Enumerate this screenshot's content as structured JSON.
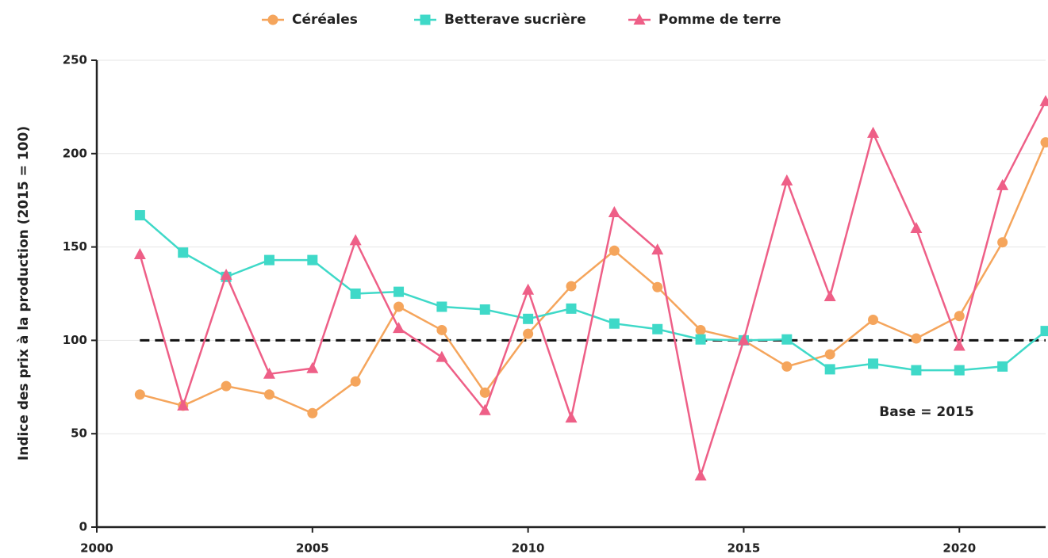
{
  "chart_data": {
    "type": "line",
    "y_label": "Indice des prix à la production (2015 = 100)",
    "x": [
      2001,
      2002,
      2003,
      2004,
      2005,
      2006,
      2007,
      2008,
      2009,
      2010,
      2011,
      2012,
      2013,
      2014,
      2015,
      2016,
      2017,
      2018,
      2019,
      2020,
      2021,
      2022
    ],
    "series": [
      {
        "name": "Céréales",
        "color": "#f5a55c",
        "marker": "circle",
        "values": [
          71,
          65,
          75.5,
          71,
          61,
          78,
          118,
          105.5,
          72,
          103.5,
          129,
          148,
          128.5,
          105.5,
          100,
          86,
          92.5,
          111,
          101,
          113,
          152.5,
          206
        ]
      },
      {
        "name": "Betterave sucrière",
        "color": "#3fd9c8",
        "marker": "square",
        "values": [
          167,
          147,
          134,
          143,
          143,
          125,
          126,
          118,
          116.5,
          111.5,
          117,
          109,
          106,
          100.5,
          100,
          100.5,
          84.5,
          87.5,
          84,
          84,
          86,
          105
        ]
      },
      {
        "name": "Pomme de terre",
        "color": "#ee5f87",
        "marker": "triangle",
        "values": [
          146,
          65,
          135,
          82,
          85,
          153.5,
          106.5,
          91,
          62.5,
          127,
          58.5,
          168.5,
          148.5,
          27.5,
          100,
          185.5,
          123.5,
          211,
          160,
          97,
          183,
          228
        ]
      }
    ],
    "reference_line": 100,
    "annotation": "Base = 2015",
    "xlim": [
      2000,
      2022
    ],
    "xticks": [
      2000,
      2005,
      2010,
      2015,
      2020
    ],
    "ylim": [
      0,
      250
    ],
    "yticks": [
      0,
      50,
      100,
      150,
      200,
      250
    ],
    "grid": true,
    "legend": "top"
  }
}
